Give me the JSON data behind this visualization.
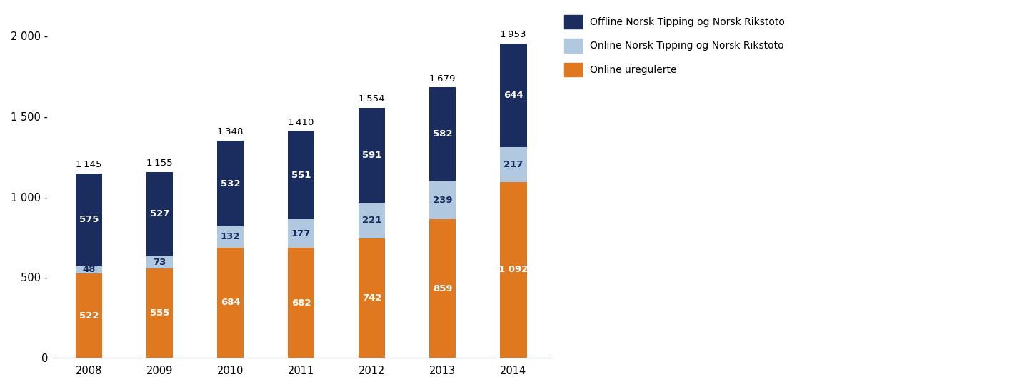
{
  "years": [
    "2008",
    "2009",
    "2010",
    "2011",
    "2012",
    "2013",
    "2014"
  ],
  "online_uregulerte": [
    522,
    555,
    684,
    682,
    742,
    859,
    1092
  ],
  "online_norsk": [
    48,
    73,
    132,
    177,
    221,
    239,
    217
  ],
  "offline_norsk": [
    575,
    527,
    532,
    551,
    591,
    582,
    644
  ],
  "totals": [
    1145,
    1155,
    1348,
    1410,
    1554,
    1679,
    1953
  ],
  "color_offline": "#1b2d5e",
  "color_online_norsk": "#b0c8e0",
  "color_online_ureg": "#e07820",
  "legend_labels": [
    "Offline Norsk Tipping og Norsk Rikstoto",
    "Online Norsk Tipping og Norsk Rikstoto",
    "Online uregulerte"
  ],
  "ylim": [
    0,
    2150
  ],
  "yticks": [
    0,
    500,
    1000,
    1500,
    2000
  ],
  "ytick_labels": [
    "0",
    "500",
    "1 000",
    "1 500",
    "2 000"
  ],
  "bar_width": 0.38,
  "figsize": [
    14.24,
    5.42
  ],
  "dpi": 100
}
